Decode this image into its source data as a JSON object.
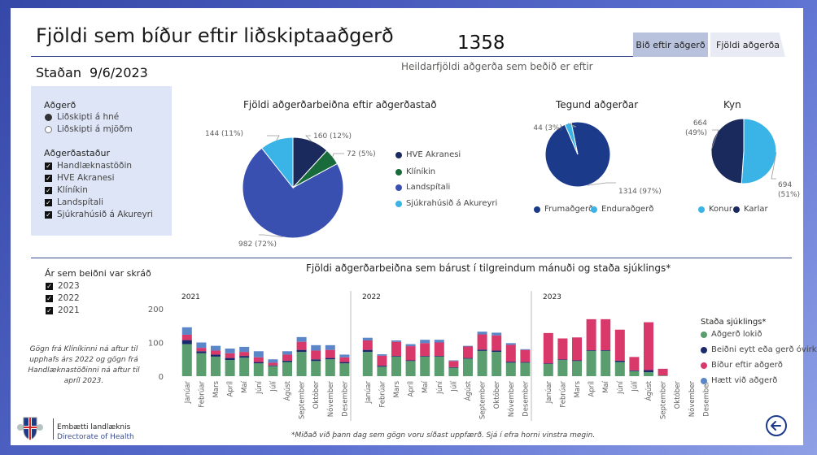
{
  "header": {
    "title": "Fjöldi sem bíður eftir liðskiptaaðgerð",
    "total_value": "1358",
    "total_caption": "Heildarfjöldi aðgerða sem beðið er eftir",
    "status_label": "Staðan",
    "status_date": "9/6/2023"
  },
  "tabs": [
    {
      "label": "Bið eftir aðgerð",
      "active": true
    },
    {
      "label": "Fjöldi aðgerða",
      "active": false
    }
  ],
  "filters": {
    "procedure_title": "Aðgerð",
    "procedure_options": [
      {
        "label": "Liðskipti á hné",
        "selected": true
      },
      {
        "label": "Liðskipti á mjöðm",
        "selected": false
      }
    ],
    "site_title": "Aðgerðastaður",
    "site_options": [
      "Handlæknastöðin",
      "HVE Akranesi",
      "Klíníkin",
      "Landspítali",
      "Sjúkrahúsið á Akureyri"
    ],
    "year_title": "Ár sem beiðni var skráð",
    "year_options": [
      "2023",
      "2022",
      "2021"
    ],
    "check_glyph": "✓"
  },
  "colors": {
    "dark_navy": "#1b2a5c",
    "green": "#1a6b3c",
    "royal_blue": "#3a50b0",
    "light_blue": "#3ab4e6",
    "done_green": "#5a9e6f",
    "cancelled_navy": "#1b2a6c",
    "waiting_red": "#d9386a",
    "stopped_blue": "#5b86c8"
  },
  "chart_data": [
    {
      "type": "pie",
      "title": "Fjöldi aðgerðarbeiðna eftir aðgerðastað",
      "slices": [
        {
          "label": "HVE Akranesi",
          "value": 160,
          "label_text": "160 (12%)",
          "color": "#1b2a5c"
        },
        {
          "label": "Klíníkin",
          "value": 72,
          "label_text": "72 (5%)",
          "color": "#1a6b3c"
        },
        {
          "label": "Landspítali",
          "value": 982,
          "label_text": "982 (72%)",
          "color": "#3a50b0"
        },
        {
          "label": "Sjúkrahúsið á Akureyri",
          "value": 144,
          "label_text": "144 (11%)",
          "color": "#3ab4e6"
        }
      ]
    },
    {
      "type": "pie",
      "title": "Tegund aðgerðar",
      "slices": [
        {
          "label": "Frumaðgerð",
          "value": 1314,
          "label_text": "1314 (97%)",
          "color": "#1b3a8a"
        },
        {
          "label": "Enduraðgerð",
          "value": 44,
          "label_text": "44 (3%)",
          "color": "#3ab4e6"
        }
      ]
    },
    {
      "type": "pie",
      "title": "Kyn",
      "slices": [
        {
          "label": "Konur",
          "value": 694,
          "label_text": "694 (51%)",
          "color": "#3ab4e6"
        },
        {
          "label": "Karlar",
          "value": 664,
          "label_text": "664 (49%)",
          "color": "#1b2a5c"
        }
      ]
    },
    {
      "type": "bar",
      "stacked": true,
      "title": "Fjöldi aðgerðarbeiðna sem bárust í tilgreindum mánuði og staða sjúklings*",
      "ylim": [
        0,
        200
      ],
      "yticks": [
        0,
        100,
        200
      ],
      "months": [
        "Janúar",
        "Febrúar",
        "Mars",
        "Apríl",
        "Maí",
        "Júní",
        "Júlí",
        "Ágúst",
        "September",
        "Október",
        "Nóvember",
        "Desember"
      ],
      "legend_title": "Staða sjúklings*",
      "series_names": [
        "Aðgerð lokið",
        "Beiðni eytt eða gerð óvirk",
        "Bíður eftir aðgerð",
        "Hætt við aðgerð"
      ],
      "series_colors": [
        "#5a9e6f",
        "#1b2a6c",
        "#d9386a",
        "#5b86c8"
      ],
      "panels": [
        {
          "year": "2021",
          "done": [
            95,
            68,
            58,
            48,
            55,
            38,
            30,
            42,
            72,
            45,
            50,
            38
          ],
          "cancelled": [
            12,
            6,
            6,
            6,
            5,
            4,
            2,
            4,
            6,
            5,
            4,
            4
          ],
          "waiting": [
            16,
            10,
            12,
            14,
            12,
            14,
            8,
            18,
            24,
            26,
            24,
            14
          ],
          "stopped": [
            22,
            16,
            14,
            14,
            15,
            18,
            10,
            10,
            14,
            16,
            14,
            8
          ]
        },
        {
          "year": "2022",
          "done": [
            72,
            28,
            58,
            45,
            58,
            58,
            25,
            52,
            75,
            72,
            40,
            40
          ],
          "cancelled": [
            6,
            3,
            2,
            2,
            2,
            2,
            2,
            2,
            4,
            4,
            3,
            2
          ],
          "waiting": [
            28,
            30,
            42,
            42,
            38,
            40,
            18,
            34,
            45,
            45,
            50,
            36
          ],
          "stopped": [
            8,
            4,
            4,
            6,
            10,
            8,
            2,
            2,
            8,
            8,
            5,
            2
          ]
        },
        {
          "year": "2023",
          "done": [
            36,
            48,
            45,
            75,
            75,
            42,
            15,
            12,
            2,
            0,
            0,
            0
          ],
          "cancelled": [
            2,
            2,
            2,
            2,
            2,
            4,
            2,
            6,
            0,
            0,
            0,
            0
          ],
          "waiting": [
            90,
            62,
            68,
            92,
            92,
            92,
            40,
            142,
            20,
            0,
            0,
            0
          ],
          "stopped": [
            0,
            0,
            0,
            0,
            0,
            0,
            0,
            0,
            0,
            0,
            0,
            0
          ]
        }
      ]
    }
  ],
  "notes": {
    "clinic_note": "Gögn frá Klíníkinni ná aftur til upphafs árs 2022 og gögn frá Handlæknastöðinni ná aftur til apríl 2023.",
    "footer_note": "*Miðað við þann dag sem gögn voru síðast uppfærð. Sjá í efra horni vinstra megin."
  },
  "org": {
    "name": "Embætti landlæknis",
    "sub": "Directorate of Health"
  },
  "icons": {
    "back": "back-arrow-icon",
    "logo": "coat-of-arms-icon"
  }
}
